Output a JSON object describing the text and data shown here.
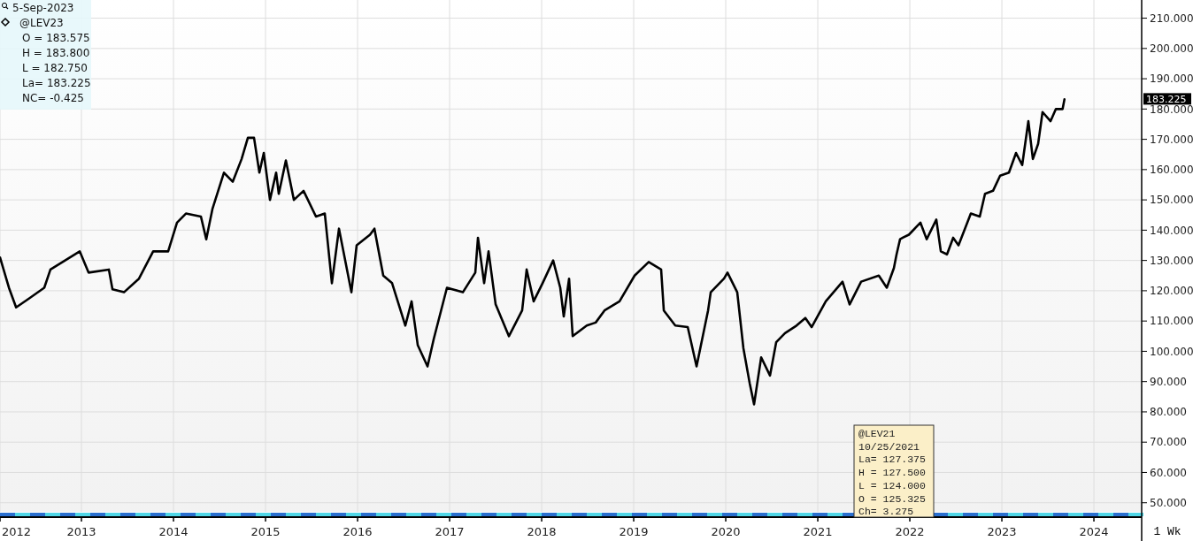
{
  "chart_data": {
    "type": "line",
    "x": [
      2012.115,
      2012.212,
      2012.29,
      2012.433,
      2012.596,
      2012.663,
      2012.981,
      2013.077,
      2013.298,
      2013.337,
      2013.462,
      2013.625,
      2013.779,
      2013.942,
      2014.038,
      2014.135,
      2014.298,
      2014.356,
      2014.423,
      2014.548,
      2014.644,
      2014.74,
      2014.808,
      2014.875,
      2014.933,
      2014.981,
      2015.048,
      2015.115,
      2015.144,
      2015.221,
      2015.308,
      2015.413,
      2015.548,
      2015.644,
      2015.721,
      2015.798,
      2015.933,
      2015.99,
      2016.135,
      2016.183,
      2016.279,
      2016.375,
      2016.519,
      2016.587,
      2016.654,
      2016.76,
      2016.827,
      2016.971,
      2017.144,
      2017.279,
      2017.308,
      2017.375,
      2017.423,
      2017.5,
      2017.644,
      2017.788,
      2017.837,
      2017.913,
      2018.01,
      2018.125,
      2018.202,
      2018.24,
      2018.298,
      2018.337,
      2018.49,
      2018.587,
      2018.683,
      2018.846,
      2019.01,
      2019.163,
      2019.298,
      2019.327,
      2019.452,
      2019.587,
      2019.683,
      2019.808,
      2019.837,
      2019.981,
      2020.019,
      2020.125,
      2020.192,
      2020.26,
      2020.308,
      2020.385,
      2020.481,
      2020.548,
      2020.644,
      2020.769,
      2020.865,
      2020.933,
      2021.087,
      2021.269,
      2021.346,
      2021.471,
      2021.663,
      2021.75,
      2021.827,
      2021.856,
      2021.894,
      2021.923,
      2021.99,
      2022.115,
      2022.183,
      2022.288,
      2022.337,
      2022.404,
      2022.471,
      2022.529,
      2022.663,
      2022.76,
      2022.817,
      2022.904,
      2022.981,
      2023.077,
      2023.154,
      2023.221,
      2023.288,
      2023.337,
      2023.394,
      2023.442,
      2023.529,
      2023.587,
      2023.66,
      2023.68
    ],
    "series": [
      {
        "color": "#000000",
        "values": [
          131,
          121,
          114.5,
          117.5,
          121,
          127,
          133,
          126,
          127,
          120.5,
          119.5,
          124,
          133,
          133,
          142.5,
          145.5,
          144.5,
          137,
          147,
          159,
          156,
          163.5,
          170.5,
          170.5,
          159,
          165.5,
          150,
          159,
          152,
          163,
          150,
          153,
          144.5,
          145.5,
          122.5,
          140.5,
          119.5,
          135,
          138.5,
          140.5,
          125,
          122.5,
          108.5,
          116.5,
          102,
          95,
          104,
          121,
          119.5,
          126,
          137.5,
          122.5,
          133,
          115.5,
          105,
          113.5,
          127,
          116.5,
          122.5,
          130,
          121,
          111.5,
          124,
          105,
          108.5,
          109.5,
          113.5,
          116.5,
          125,
          129.5,
          127,
          113.5,
          108.5,
          108,
          95,
          113.5,
          119.5,
          124,
          126,
          119.5,
          101,
          89.5,
          82.5,
          98,
          92,
          103,
          106,
          108.5,
          111,
          108,
          116.5,
          123,
          115.5,
          123,
          125,
          121,
          127.5,
          132,
          137,
          137.5,
          138.5,
          142.5,
          137,
          143.5,
          133,
          132,
          137.5,
          135,
          145.5,
          144.5,
          152,
          153,
          158,
          159,
          165.5,
          161.5,
          176,
          163.5,
          168.5,
          179,
          176,
          180,
          180,
          183.2
        ]
      }
    ],
    "xlim": [
      2012.115,
      2024.519
    ],
    "xticks": [
      {
        "value": 2012.115,
        "label": "2012"
      },
      2013,
      2014,
      2015,
      2016,
      2017,
      2018,
      2019,
      2020,
      2021,
      2022,
      2023,
      2024
    ],
    "ylim": [
      47,
      216
    ],
    "yticks": [
      {
        "value": 50,
        "label": "50.000"
      },
      {
        "value": 60,
        "label": "60.000"
      },
      {
        "value": 70,
        "label": "70.000"
      },
      {
        "value": 80,
        "label": "80.000"
      },
      {
        "value": 90,
        "label": "90.000"
      },
      {
        "value": 100,
        "label": "100.000"
      },
      {
        "value": 110,
        "label": "110.000"
      },
      {
        "value": 120,
        "label": "120.000"
      },
      {
        "value": 130,
        "label": "130.000"
      },
      {
        "value": 140,
        "label": "140.000"
      },
      {
        "value": 150,
        "label": "150.000"
      },
      {
        "value": 160,
        "label": "160.000"
      },
      {
        "value": 170,
        "label": "170.000"
      },
      {
        "value": 180,
        "label": "180.000"
      },
      {
        "value": 190,
        "label": "190.000"
      },
      {
        "value": 200,
        "label": "200.000"
      },
      {
        "value": 210,
        "label": "210.000"
      }
    ],
    "grid": true,
    "line_style": "solid",
    "annotations": [
      "5-Sep-2023",
      "@LEV23",
      "O = 183.575",
      "H = 183.800",
      "L = 182.750",
      "La= 183.225",
      "NC= -0.425",
      "@LEV21",
      "10/25/2021",
      "La= 127.375",
      "H = 127.500",
      "L = 124.000",
      "O = 125.325",
      "Ch= 3.275",
      "1 Wk",
      "183.225"
    ]
  }
}
